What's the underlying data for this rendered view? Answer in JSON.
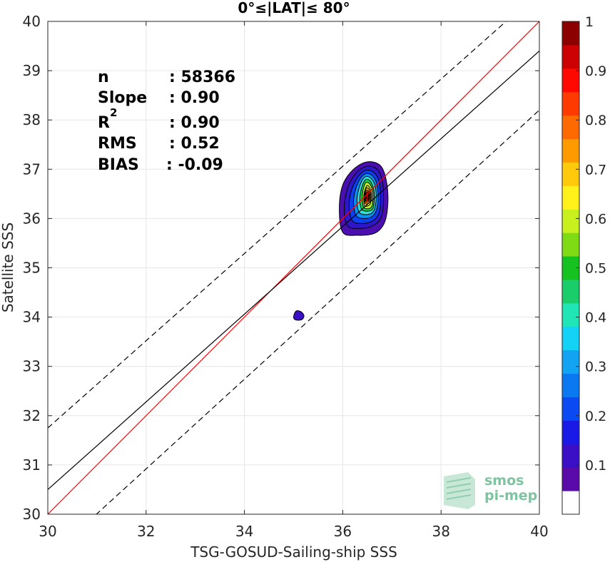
{
  "chart_data": {
    "type": "contour-density-scatter",
    "title": "0°≤|LAT|≤ 80°",
    "xlabel": "TSG-GOSUD-Sailing-ship SSS",
    "ylabel": "Satellite SSS",
    "xlim": [
      30,
      40
    ],
    "ylim": [
      30,
      40
    ],
    "xticks": [
      "30",
      "32",
      "34",
      "36",
      "38",
      "40"
    ],
    "yticks": [
      "30",
      "31",
      "32",
      "33",
      "34",
      "35",
      "36",
      "37",
      "38",
      "39",
      "40"
    ],
    "grid": true,
    "stats": [
      {
        "label": "n",
        "value": ": 58366"
      },
      {
        "label": "Slope",
        "value": ": 0.90"
      },
      {
        "label": "R",
        "sup": "2",
        "value": ": 0.90"
      },
      {
        "label": "RMS",
        "value": ": 0.52"
      },
      {
        "label": "BIAS",
        "value": ": -0.09"
      }
    ],
    "lines": [
      {
        "name": "one-to-one",
        "color": "#ff0000",
        "style": "solid",
        "points": [
          [
            30,
            30
          ],
          [
            40,
            40
          ]
        ]
      },
      {
        "name": "regression",
        "color": "#000000",
        "style": "solid",
        "points": [
          [
            30,
            30.5
          ],
          [
            40,
            39.4
          ]
        ]
      },
      {
        "name": "upper-bound",
        "color": "#000000",
        "style": "dashed",
        "points": [
          [
            30,
            31.75
          ],
          [
            40,
            40.6
          ]
        ]
      },
      {
        "name": "lower-bound",
        "color": "#000000",
        "style": "dashed",
        "points": [
          [
            30,
            29.1
          ],
          [
            40,
            38.2
          ]
        ]
      }
    ],
    "density_peak": {
      "x": 36.5,
      "y": 36.45
    },
    "secondary_blob": {
      "x": 35.1,
      "y": 34.03,
      "level": 0.1
    },
    "contours": [
      {
        "level": 0.05,
        "color": "#4b0fb0",
        "points": [
          [
            36.0,
            35.72
          ],
          [
            36.3,
            35.66
          ],
          [
            36.65,
            35.7
          ],
          [
            36.85,
            35.92
          ],
          [
            36.92,
            36.35
          ],
          [
            36.88,
            36.8
          ],
          [
            36.76,
            37.08
          ],
          [
            36.5,
            37.15
          ],
          [
            36.22,
            37.0
          ],
          [
            36.0,
            36.68
          ],
          [
            35.93,
            36.2
          ]
        ]
      },
      {
        "level": 0.1,
        "color": "#2f16c8",
        "points": [
          [
            36.1,
            35.85
          ],
          [
            36.35,
            35.8
          ],
          [
            36.6,
            35.85
          ],
          [
            36.78,
            36.02
          ],
          [
            36.83,
            36.38
          ],
          [
            36.8,
            36.78
          ],
          [
            36.7,
            37.0
          ],
          [
            36.5,
            37.06
          ],
          [
            36.28,
            36.93
          ],
          [
            36.1,
            36.62
          ],
          [
            36.03,
            36.2
          ]
        ]
      },
      {
        "level": 0.2,
        "color": "#0a3ff2",
        "points": [
          [
            36.2,
            35.95
          ],
          [
            36.42,
            35.9
          ],
          [
            36.62,
            35.96
          ],
          [
            36.74,
            36.12
          ],
          [
            36.77,
            36.42
          ],
          [
            36.74,
            36.75
          ],
          [
            36.64,
            36.93
          ],
          [
            36.48,
            36.98
          ],
          [
            36.32,
            36.86
          ],
          [
            36.18,
            36.58
          ],
          [
            36.13,
            36.25
          ]
        ]
      },
      {
        "level": 0.3,
        "color": "#0c8ef2",
        "points": [
          [
            36.28,
            36.05
          ],
          [
            36.47,
            36.0
          ],
          [
            36.62,
            36.06
          ],
          [
            36.7,
            36.22
          ],
          [
            36.72,
            36.46
          ],
          [
            36.69,
            36.71
          ],
          [
            36.6,
            36.87
          ],
          [
            36.47,
            36.91
          ],
          [
            36.35,
            36.8
          ],
          [
            36.25,
            36.55
          ],
          [
            36.22,
            36.3
          ]
        ]
      },
      {
        "level": 0.4,
        "color": "#2ee0d6",
        "points": [
          [
            36.34,
            36.12
          ],
          [
            36.5,
            36.08
          ],
          [
            36.62,
            36.14
          ],
          [
            36.67,
            36.3
          ],
          [
            36.68,
            36.5
          ],
          [
            36.65,
            36.69
          ],
          [
            36.57,
            36.82
          ],
          [
            36.47,
            36.85
          ],
          [
            36.38,
            36.75
          ],
          [
            36.31,
            36.53
          ],
          [
            36.29,
            36.32
          ]
        ]
      },
      {
        "level": 0.5,
        "color": "#19d24a",
        "points": [
          [
            36.39,
            36.18
          ],
          [
            36.52,
            36.15
          ],
          [
            36.61,
            36.2
          ],
          [
            36.64,
            36.35
          ],
          [
            36.64,
            36.52
          ],
          [
            36.61,
            36.66
          ],
          [
            36.55,
            36.77
          ],
          [
            36.47,
            36.79
          ],
          [
            36.41,
            36.7
          ],
          [
            36.36,
            36.52
          ],
          [
            36.35,
            36.33
          ]
        ]
      },
      {
        "level": 0.6,
        "color": "#b8f023",
        "points": [
          [
            36.43,
            36.22
          ],
          [
            36.53,
            36.2
          ],
          [
            36.6,
            36.26
          ],
          [
            36.61,
            36.4
          ],
          [
            36.61,
            36.54
          ],
          [
            36.58,
            36.65
          ],
          [
            36.53,
            36.72
          ],
          [
            36.47,
            36.73
          ],
          [
            36.43,
            36.65
          ],
          [
            36.4,
            36.5
          ],
          [
            36.4,
            36.35
          ]
        ]
      },
      {
        "level": 0.65,
        "color": "#ffe41a",
        "points": [
          [
            36.45,
            36.25
          ],
          [
            36.55,
            36.28
          ],
          [
            36.58,
            36.4
          ],
          [
            36.58,
            36.52
          ],
          [
            36.55,
            36.62
          ],
          [
            36.5,
            36.67
          ],
          [
            36.46,
            36.6
          ],
          [
            36.43,
            36.47
          ],
          [
            36.43,
            36.35
          ]
        ]
      },
      {
        "level": 0.7,
        "color": "#ffb400",
        "points": [
          [
            36.46,
            36.3
          ],
          [
            36.54,
            36.32
          ],
          [
            36.57,
            36.42
          ],
          [
            36.56,
            36.53
          ],
          [
            36.53,
            36.6
          ],
          [
            36.48,
            36.62
          ],
          [
            36.45,
            36.53
          ],
          [
            36.44,
            36.4
          ]
        ]
      },
      {
        "level": 0.8,
        "color": "#ff6a00",
        "points": [
          [
            36.47,
            36.33
          ],
          [
            36.53,
            36.35
          ],
          [
            36.55,
            36.44
          ],
          [
            36.54,
            36.53
          ],
          [
            36.51,
            36.57
          ],
          [
            36.47,
            36.56
          ],
          [
            36.45,
            36.48
          ],
          [
            36.45,
            36.39
          ]
        ]
      },
      {
        "level": 0.9,
        "color": "#ff1a00",
        "points": [
          [
            36.48,
            36.36
          ],
          [
            36.52,
            36.37
          ],
          [
            36.54,
            36.44
          ],
          [
            36.53,
            36.52
          ],
          [
            36.5,
            36.54
          ],
          [
            36.47,
            36.52
          ],
          [
            36.46,
            36.45
          ],
          [
            36.46,
            36.39
          ]
        ]
      },
      {
        "level": 1.0,
        "color": "#a30000",
        "points": [
          [
            36.49,
            36.39
          ],
          [
            36.52,
            36.4
          ],
          [
            36.53,
            36.45
          ],
          [
            36.52,
            36.5
          ],
          [
            36.49,
            36.51
          ],
          [
            36.47,
            36.48
          ],
          [
            36.47,
            36.43
          ]
        ]
      }
    ],
    "blob_points": [
      [
        35.0,
        34.0
      ],
      [
        35.05,
        34.12
      ],
      [
        35.15,
        34.11
      ],
      [
        35.21,
        34.03
      ],
      [
        35.17,
        33.95
      ],
      [
        35.05,
        33.94
      ]
    ]
  },
  "colorbar": {
    "ticks": [
      "0.1",
      "0.2",
      "0.3",
      "0.4",
      "0.5",
      "0.6",
      "0.7",
      "0.8",
      "0.9",
      "1"
    ],
    "colors": [
      "#ffffff",
      "#5a0aa8",
      "#3b0fc6",
      "#1a1ae6",
      "#0a4af2",
      "#0a78f0",
      "#12a4f2",
      "#13d2f6",
      "#1fe6b4",
      "#19cd6a",
      "#16c21f",
      "#7fdc14",
      "#c8f01e",
      "#fff21a",
      "#ffca0c",
      "#ff9a00",
      "#ff6a00",
      "#ff3a00",
      "#ff0800",
      "#cc0000",
      "#8c0000"
    ]
  },
  "logo": {
    "line1": "smos",
    "line2": "pi-mep"
  }
}
